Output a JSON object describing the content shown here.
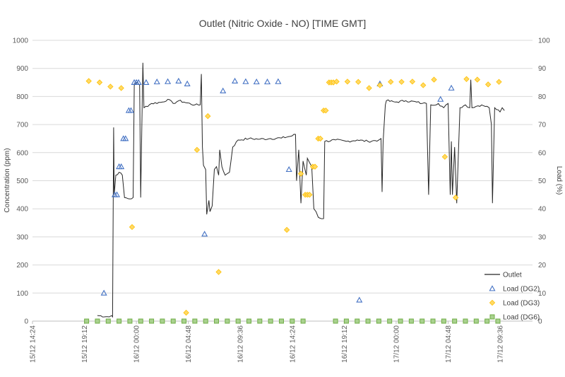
{
  "chart_data": {
    "type": "line",
    "title": "Outlet (Nitric Oxide - NO) [TIME GMT]",
    "ylabel": "Concentration (ppm)",
    "y2label": "Load (%)",
    "xlabel": "",
    "ylim": [
      0,
      1000
    ],
    "y2lim": [
      0,
      100
    ],
    "xlim": [
      0,
      46.2
    ],
    "grid": "horizontal",
    "legend_position": "bottom-right",
    "y_ticks": [
      "0",
      "100",
      "200",
      "300",
      "400",
      "500",
      "600",
      "700",
      "800",
      "900",
      "1000"
    ],
    "y2_ticks": [
      "0",
      "10",
      "20",
      "30",
      "40",
      "50",
      "60",
      "70",
      "80",
      "90",
      "100"
    ],
    "x_ticks": [
      {
        "hours": 0,
        "label": "15/12 14:24"
      },
      {
        "hours": 4.8,
        "label": "15/12 19:12"
      },
      {
        "hours": 9.6,
        "label": "16/12 00:00"
      },
      {
        "hours": 14.4,
        "label": "16/12 04:48"
      },
      {
        "hours": 19.2,
        "label": "16/12 09:36"
      },
      {
        "hours": 24.0,
        "label": "16/12 14:24"
      },
      {
        "hours": 28.8,
        "label": "16/12 19:12"
      },
      {
        "hours": 33.6,
        "label": "17/12 00:00"
      },
      {
        "hours": 38.4,
        "label": "17/12 04:48"
      },
      {
        "hours": 43.2,
        "label": "17/12 09:36"
      }
    ],
    "series": [
      {
        "name": "Outlet",
        "kind": "line",
        "axis": "left",
        "color": "#262626",
        "points": [
          [
            6.0,
            20
          ],
          [
            7.1,
            15
          ],
          [
            7.3,
            20
          ],
          [
            7.4,
            15
          ],
          [
            7.5,
            690
          ],
          [
            7.55,
            450
          ],
          [
            7.7,
            520
          ],
          [
            8.0,
            530
          ],
          [
            8.3,
            520
          ],
          [
            8.5,
            440
          ],
          [
            9.0,
            435
          ],
          [
            9.3,
            440
          ],
          [
            9.4,
            840
          ],
          [
            9.6,
            850
          ],
          [
            9.9,
            840
          ],
          [
            10.0,
            440
          ],
          [
            10.2,
            920
          ],
          [
            10.3,
            760
          ],
          [
            11.0,
            775
          ],
          [
            12.0,
            780
          ],
          [
            12.5,
            790
          ],
          [
            13.0,
            775
          ],
          [
            13.5,
            785
          ],
          [
            14.0,
            780
          ],
          [
            15.0,
            770
          ],
          [
            15.5,
            770
          ],
          [
            15.6,
            880
          ],
          [
            15.7,
            620
          ],
          [
            15.8,
            555
          ],
          [
            16.0,
            540
          ],
          [
            16.1,
            380
          ],
          [
            16.3,
            430
          ],
          [
            16.4,
            390
          ],
          [
            16.6,
            410
          ],
          [
            16.8,
            540
          ],
          [
            17.0,
            550
          ],
          [
            17.2,
            520
          ],
          [
            17.3,
            610
          ],
          [
            17.5,
            550
          ],
          [
            17.8,
            520
          ],
          [
            18.2,
            530
          ],
          [
            18.5,
            620
          ],
          [
            19.0,
            645
          ],
          [
            20.0,
            650
          ],
          [
            21.0,
            648
          ],
          [
            22.0,
            650
          ],
          [
            23.0,
            652
          ],
          [
            24.0,
            660
          ],
          [
            24.3,
            665
          ],
          [
            24.4,
            500
          ],
          [
            24.6,
            610
          ],
          [
            24.8,
            420
          ],
          [
            25.0,
            570
          ],
          [
            25.3,
            520
          ],
          [
            25.4,
            580
          ],
          [
            25.8,
            550
          ],
          [
            26.0,
            400
          ],
          [
            26.2,
            390
          ],
          [
            26.4,
            370
          ],
          [
            26.9,
            365
          ],
          [
            27.0,
            640
          ],
          [
            28.0,
            645
          ],
          [
            29.0,
            640
          ],
          [
            30.0,
            645
          ],
          [
            31.0,
            640
          ],
          [
            32.0,
            645
          ],
          [
            32.2,
            650
          ],
          [
            32.3,
            460
          ],
          [
            32.4,
            640
          ],
          [
            32.6,
            770
          ],
          [
            32.7,
            785
          ],
          [
            33.5,
            780
          ],
          [
            34.5,
            785
          ],
          [
            35.5,
            780
          ],
          [
            36.0,
            775
          ],
          [
            36.4,
            775
          ],
          [
            36.6,
            450
          ],
          [
            36.8,
            770
          ],
          [
            37.5,
            775
          ],
          [
            38.0,
            760
          ],
          [
            38.4,
            775
          ],
          [
            38.6,
            450
          ],
          [
            38.7,
            640
          ],
          [
            38.8,
            450
          ],
          [
            39.0,
            620
          ],
          [
            39.2,
            420
          ],
          [
            39.5,
            760
          ],
          [
            40.0,
            770
          ],
          [
            40.4,
            760
          ],
          [
            40.5,
            860
          ],
          [
            40.6,
            760
          ],
          [
            41.0,
            765
          ],
          [
            41.5,
            770
          ],
          [
            42.0,
            765
          ],
          [
            42.2,
            760
          ],
          [
            42.4,
            700
          ],
          [
            42.5,
            420
          ],
          [
            42.7,
            760
          ],
          [
            43.2,
            745
          ],
          [
            43.4,
            760
          ],
          [
            43.6,
            750
          ]
        ]
      },
      {
        "name": "Load (DG2)",
        "kind": "scatter",
        "marker": "triangle",
        "axis": "right",
        "color": "#4472C4",
        "points": [
          [
            6.6,
            10
          ],
          [
            7.6,
            45
          ],
          [
            7.8,
            45
          ],
          [
            8.0,
            55
          ],
          [
            8.2,
            55
          ],
          [
            8.4,
            65
          ],
          [
            8.6,
            65
          ],
          [
            8.9,
            75
          ],
          [
            9.1,
            75
          ],
          [
            9.4,
            85
          ],
          [
            9.6,
            85
          ],
          [
            9.8,
            85
          ],
          [
            10.5,
            85
          ],
          [
            11.5,
            85.2
          ],
          [
            12.5,
            85.3
          ],
          [
            13.5,
            85.5
          ],
          [
            14.3,
            84.5
          ],
          [
            15.9,
            31
          ],
          [
            17.6,
            82
          ],
          [
            18.7,
            85.5
          ],
          [
            19.7,
            85.3
          ],
          [
            20.7,
            85.2
          ],
          [
            21.7,
            85.2
          ],
          [
            22.7,
            85.3
          ],
          [
            23.7,
            54
          ],
          [
            30.2,
            7.5
          ],
          [
            32.1,
            84.5
          ],
          [
            37.7,
            79
          ],
          [
            38.7,
            83
          ]
        ]
      },
      {
        "name": "Load (DG3)",
        "kind": "scatter",
        "marker": "diamond",
        "axis": "right",
        "color": "#FFC000",
        "points": [
          [
            5.2,
            85.5
          ],
          [
            6.2,
            85
          ],
          [
            7.2,
            83.5
          ],
          [
            8.2,
            83
          ],
          [
            9.2,
            33.5
          ],
          [
            14.2,
            3
          ],
          [
            15.2,
            61
          ],
          [
            16.2,
            73
          ],
          [
            17.2,
            17.5
          ],
          [
            23.5,
            32.5
          ],
          [
            24.8,
            52.5
          ],
          [
            25.2,
            45
          ],
          [
            25.4,
            45
          ],
          [
            25.6,
            45
          ],
          [
            25.9,
            55
          ],
          [
            26.1,
            55
          ],
          [
            26.4,
            65
          ],
          [
            26.6,
            65
          ],
          [
            26.9,
            75
          ],
          [
            27.1,
            75
          ],
          [
            27.4,
            85
          ],
          [
            27.6,
            85
          ],
          [
            27.8,
            85
          ],
          [
            28.1,
            85.3
          ],
          [
            29.1,
            85.3
          ],
          [
            30.1,
            85.2
          ],
          [
            31.1,
            83
          ],
          [
            32.1,
            84
          ],
          [
            33.1,
            85.2
          ],
          [
            34.1,
            85.2
          ],
          [
            35.1,
            85.3
          ],
          [
            36.1,
            84
          ],
          [
            37.1,
            86
          ],
          [
            38.1,
            58.5
          ],
          [
            39.1,
            44
          ],
          [
            40.1,
            86.2
          ],
          [
            41.1,
            86
          ],
          [
            42.1,
            84.3
          ],
          [
            43.1,
            85.2
          ]
        ]
      },
      {
        "name": "Load (DG6)",
        "kind": "scatter",
        "marker": "square",
        "axis": "right",
        "color": "#70AD47",
        "points": [
          [
            5.0,
            0
          ],
          [
            6.0,
            0
          ],
          [
            7.0,
            0
          ],
          [
            8.0,
            0
          ],
          [
            9.0,
            0
          ],
          [
            10.0,
            0
          ],
          [
            11.0,
            0
          ],
          [
            12.0,
            0
          ],
          [
            13.0,
            0
          ],
          [
            14.0,
            0
          ],
          [
            15.0,
            0
          ],
          [
            16.0,
            0
          ],
          [
            17.0,
            0
          ],
          [
            18.0,
            0
          ],
          [
            19.0,
            0
          ],
          [
            20.0,
            0
          ],
          [
            21.0,
            0
          ],
          [
            22.0,
            0
          ],
          [
            23.0,
            0
          ],
          [
            24.0,
            0
          ],
          [
            25.0,
            0
          ],
          [
            28.0,
            0
          ],
          [
            29.0,
            0
          ],
          [
            30.0,
            0
          ],
          [
            31.0,
            0
          ],
          [
            32.0,
            0
          ],
          [
            33.0,
            0
          ],
          [
            34.0,
            0
          ],
          [
            35.0,
            0
          ],
          [
            36.0,
            0
          ],
          [
            37.0,
            0
          ],
          [
            38.0,
            0
          ],
          [
            39.0,
            0
          ],
          [
            40.0,
            0
          ],
          [
            41.0,
            0
          ],
          [
            42.0,
            0
          ],
          [
            43.0,
            0
          ]
        ]
      }
    ]
  }
}
